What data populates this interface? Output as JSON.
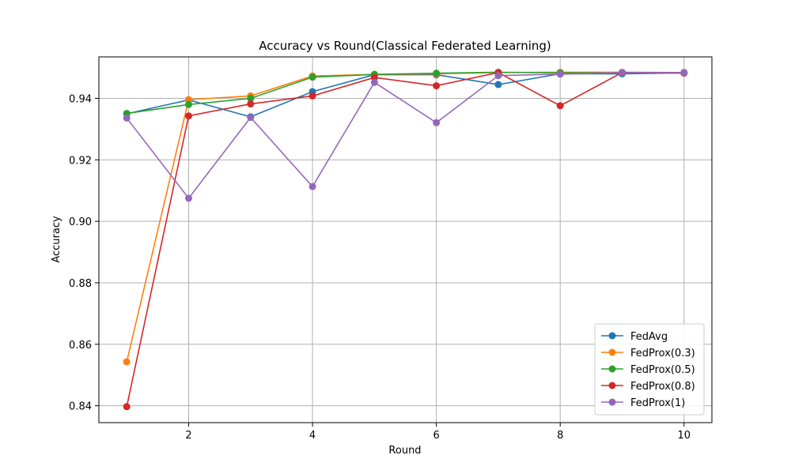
{
  "chart_data": {
    "type": "line",
    "title": "Accuracy vs Round(Classical Federated Learning)",
    "xlabel": "Round",
    "ylabel": "Accuracy",
    "xlim": [
      0.55,
      10.45
    ],
    "ylim": [
      0.8345,
      0.9535
    ],
    "xticks": [
      2,
      4,
      6,
      8,
      10
    ],
    "xtick_labels": [
      "2",
      "4",
      "6",
      "8",
      "10"
    ],
    "yticks": [
      0.84,
      0.86,
      0.88,
      0.9,
      0.92,
      0.94
    ],
    "ytick_labels": [
      "0.84",
      "0.86",
      "0.88",
      "0.90",
      "0.92",
      "0.94"
    ],
    "grid": true,
    "legend_position": "lower right",
    "x": [
      1,
      2,
      3,
      4,
      5,
      6,
      7,
      8,
      9,
      10
    ],
    "series": [
      {
        "name": "FedAvg",
        "color": "#1f77b4",
        "values": [
          0.935,
          0.9395,
          0.934,
          0.9422,
          0.9477,
          0.9477,
          0.9445,
          0.948,
          0.948,
          0.9483
        ]
      },
      {
        "name": "FedProx(0.3)",
        "color": "#ff7f0e",
        "values": [
          0.8543,
          0.9396,
          0.9408,
          0.9473,
          0.9478,
          0.948,
          0.9484,
          0.9485,
          0.9485,
          0.9484
        ]
      },
      {
        "name": "FedProx(0.5)",
        "color": "#2ca02c",
        "values": [
          0.9351,
          0.938,
          0.94,
          0.9469,
          0.9478,
          0.9482,
          0.9485,
          0.9483,
          0.9483,
          0.9484
        ]
      },
      {
        "name": "FedProx(0.8)",
        "color": "#d62728",
        "values": [
          0.8397,
          0.9343,
          0.9382,
          0.9408,
          0.9468,
          0.9441,
          0.9484,
          0.9376,
          0.9484,
          0.9482
        ]
      },
      {
        "name": "FedProx(1)",
        "color": "#9467bd",
        "values": [
          0.9336,
          0.9075,
          0.9338,
          0.9113,
          0.9452,
          0.9321,
          0.9474,
          0.9479,
          0.9484,
          0.9484
        ]
      }
    ]
  }
}
